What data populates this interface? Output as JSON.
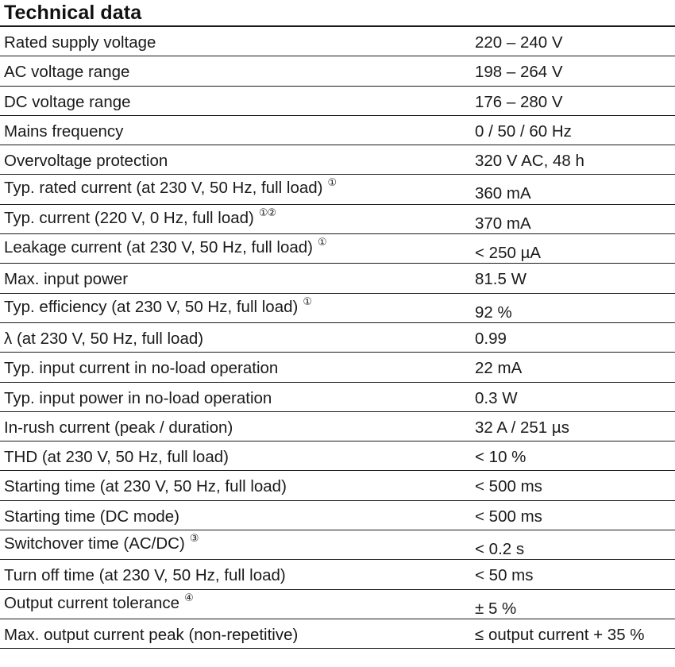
{
  "title": "Technical data",
  "rows": [
    {
      "param": "Rated supply voltage",
      "note": "",
      "value": "220 – 240 V"
    },
    {
      "param": "AC voltage range",
      "note": "",
      "value": "198 – 264 V"
    },
    {
      "param": "DC voltage range",
      "note": "",
      "value": "176 – 280 V"
    },
    {
      "param": "Mains frequency",
      "note": "",
      "value": "0 / 50 / 60 Hz"
    },
    {
      "param": "Overvoltage protection",
      "note": "",
      "value": "320 V AC, 48 h"
    },
    {
      "param": "Typ. rated current (at 230 V, 50 Hz, full load)",
      "note": "①",
      "value": "360 mA"
    },
    {
      "param": "Typ. current (220 V, 0 Hz, full load)",
      "note": "①②",
      "value": "370 mA"
    },
    {
      "param": "Leakage current (at 230 V, 50 Hz, full load)",
      "note": "①",
      "value": "< 250 µA"
    },
    {
      "param": "Max. input power",
      "note": "",
      "value": "81.5 W"
    },
    {
      "param": "Typ. efficiency (at 230 V, 50 Hz, full load)",
      "note": "①",
      "value": "92 %"
    },
    {
      "param": "λ (at 230 V, 50 Hz, full load)",
      "note": "",
      "value": "0.99"
    },
    {
      "param": "Typ. input current in no-load operation",
      "note": "",
      "value": "22 mA"
    },
    {
      "param": "Typ. input power in no-load operation",
      "note": "",
      "value": "0.3 W"
    },
    {
      "param": "In-rush current (peak / duration)",
      "note": "",
      "value": "32 A / 251 µs"
    },
    {
      "param": "THD (at 230 V, 50 Hz, full load)",
      "note": "",
      "value": "< 10 %"
    },
    {
      "param": "Starting time (at 230 V, 50 Hz, full load)",
      "note": "",
      "value": "< 500 ms"
    },
    {
      "param": "Starting time (DC mode)",
      "note": "",
      "value": "< 500 ms"
    },
    {
      "param": "Switchover time (AC/DC)",
      "note": "③",
      "value": "< 0.2 s"
    },
    {
      "param": "Turn off time (at 230 V, 50 Hz, full load)",
      "note": "",
      "value": "< 50 ms"
    },
    {
      "param": "Output current tolerance",
      "note": "④",
      "value": "± 5 %"
    },
    {
      "param": "Max. output current peak (non-repetitive)",
      "note": "",
      "value": "≤ output current + 35 %"
    }
  ]
}
